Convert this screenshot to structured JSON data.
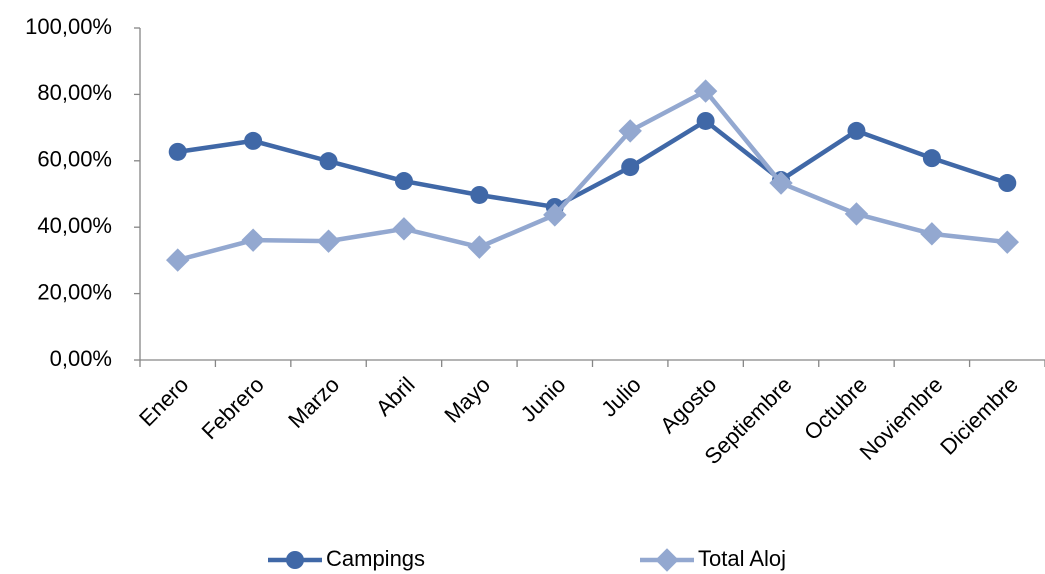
{
  "chart_data": {
    "type": "line",
    "categories": [
      "Enero",
      "Febrero",
      "Marzo",
      "Abril",
      "Mayo",
      "Junio",
      "Julio",
      "Agosto",
      "Septiembre",
      "Octubre",
      "Noviembre",
      "Diciembre"
    ],
    "series": [
      {
        "name": "Campings",
        "color": "#4068a7",
        "marker": "circle",
        "values": [
          62.7,
          66.0,
          59.9,
          53.9,
          49.7,
          46.1,
          58.1,
          72.0,
          54.2,
          69.0,
          60.8,
          53.3
        ]
      },
      {
        "name": "Total Aloj",
        "color": "#93a8d0",
        "marker": "diamond",
        "values": [
          30.1,
          36.1,
          35.8,
          39.5,
          34.0,
          43.7,
          69.0,
          81.0,
          53.3,
          44.0,
          38.0,
          35.5
        ]
      }
    ],
    "ylim": [
      0,
      100
    ],
    "yticks": [
      {
        "value": 0,
        "label": "0,00%"
      },
      {
        "value": 20,
        "label": "20,00%"
      },
      {
        "value": 40,
        "label": "40,00%"
      },
      {
        "value": 60,
        "label": "60,00%"
      },
      {
        "value": 80,
        "label": "80,00%"
      },
      {
        "value": 100,
        "label": "100,00%"
      }
    ],
    "grid": false,
    "legend": "bottom"
  }
}
